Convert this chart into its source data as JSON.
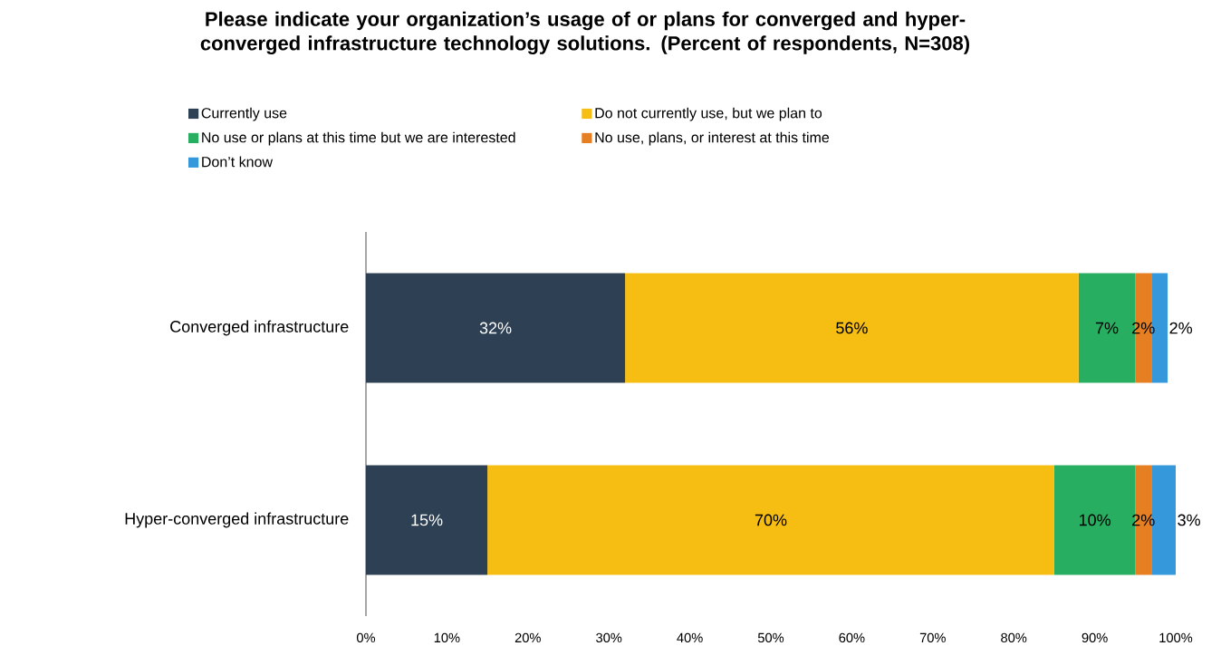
{
  "chart_data": {
    "type": "bar",
    "orientation": "horizontal",
    "stacked": true,
    "title": "Please indicate your organization’s usage of or plans for converged and hyper-converged infrastructure technology solutions. (Percent of respondents, N=308)",
    "categories": [
      "Converged infrastructure",
      "Hyper-converged infrastructure"
    ],
    "series": [
      {
        "name": "Currently use",
        "color": "#2e4053",
        "values": [
          32,
          15
        ],
        "value_labels": [
          "32%",
          "15%"
        ]
      },
      {
        "name": "Do not currently use, but we plan to",
        "color": "#f6bd13",
        "values": [
          56,
          70
        ],
        "value_labels": [
          "56%",
          "70%"
        ]
      },
      {
        "name": "No use or plans at this time but we are interested",
        "color": "#27ae60",
        "values": [
          7,
          10
        ],
        "value_labels": [
          "7%",
          "10%"
        ]
      },
      {
        "name": "No use, plans, or interest at this time",
        "color": "#e67e22",
        "values": [
          2,
          2
        ],
        "value_labels": [
          "2%",
          "2%"
        ]
      },
      {
        "name": "Don’t know",
        "color": "#3498db",
        "values": [
          2,
          3
        ],
        "value_labels": [
          "2%",
          "3%"
        ]
      }
    ],
    "xlim": [
      0,
      100
    ],
    "xticks": [
      {
        "value": 0,
        "label": "0%"
      },
      {
        "value": 10,
        "label": "10%"
      },
      {
        "value": 20,
        "label": "20%"
      },
      {
        "value": 30,
        "label": "30%"
      },
      {
        "value": 40,
        "label": "40%"
      },
      {
        "value": 50,
        "label": "50%"
      },
      {
        "value": 60,
        "label": "60%"
      },
      {
        "value": 70,
        "label": "70%"
      },
      {
        "value": 80,
        "label": "80%"
      },
      {
        "value": 90,
        "label": "90%"
      },
      {
        "value": 100,
        "label": "100%"
      }
    ],
    "legend": "top"
  }
}
